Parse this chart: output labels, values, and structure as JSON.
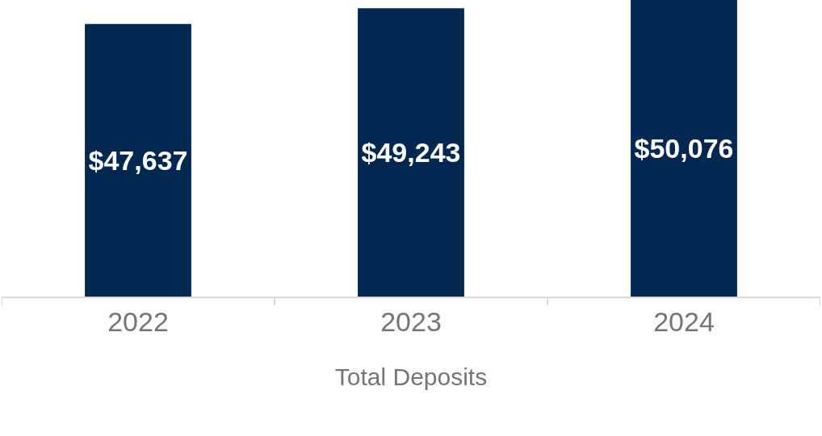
{
  "chart_data": {
    "type": "bar",
    "xlabel": "Total Deposits",
    "categories": [
      "2022",
      "2023",
      "2024"
    ],
    "values": [
      47637,
      49243,
      50076
    ],
    "value_labels": [
      "$47,637",
      "$49,243",
      "$50,076"
    ],
    "color": "#022851",
    "ylim": [
      20000,
      50076
    ],
    "tick_labels": "x",
    "legend": false
  }
}
